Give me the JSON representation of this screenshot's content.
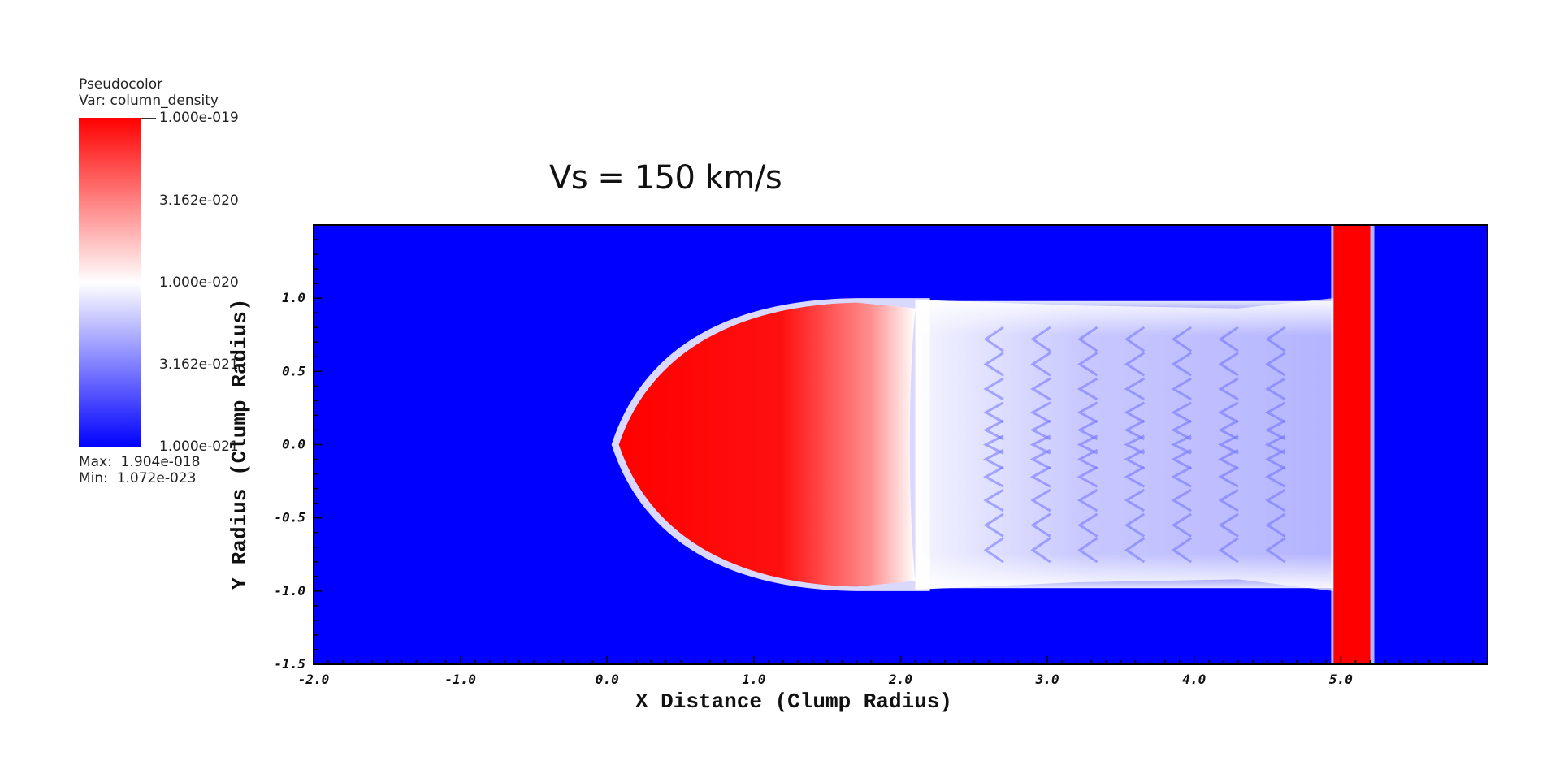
{
  "legend": {
    "plot_type": "Pseudocolor",
    "variable": "Var: column_density",
    "ticks": [
      "1.000e-019",
      "3.162e-020",
      "1.000e-020",
      "3.162e-021",
      "1.000e-021"
    ],
    "max": "Max:  1.904e-018",
    "min": "Min:  1.072e-023",
    "colors": {
      "high": "#ff0000",
      "mid": "#ffffff",
      "low": "#0000ff"
    }
  },
  "chart_data": {
    "type": "heatmap",
    "title": "Vs = 150 km/s",
    "xlabel": "X Distance (Clump Radius)",
    "ylabel": "Y Radius (Clump Radius)",
    "xlim": [
      -2.0,
      6.0
    ],
    "ylim": [
      -1.5,
      1.5
    ],
    "xticks": [
      "-2.0",
      "-1.0",
      "0.0",
      "1.0",
      "2.0",
      "3.0",
      "4.0",
      "5.0"
    ],
    "yticks": [
      "-1.5",
      "-1.0",
      "-0.5",
      "0.0",
      "0.5",
      "1.0"
    ],
    "xtick_values": [
      -2.0,
      -1.0,
      0.0,
      1.0,
      2.0,
      3.0,
      4.0,
      5.0
    ],
    "ytick_values": [
      -1.5,
      -1.0,
      -0.5,
      0.0,
      0.5,
      1.0
    ],
    "colormap": "blue-white-red",
    "scale": "log",
    "color_range": [
      1e-21,
      1e-19
    ],
    "background_color": "#0000ff",
    "features": {
      "clump_front_x": 0.08,
      "clump_halfwidth_y": 0.97,
      "dense_core_x_range": [
        0.08,
        2.1
      ],
      "tail_x_range": [
        2.1,
        4.95
      ],
      "shock_x_range": [
        4.95,
        5.2
      ]
    },
    "grid": false
  }
}
